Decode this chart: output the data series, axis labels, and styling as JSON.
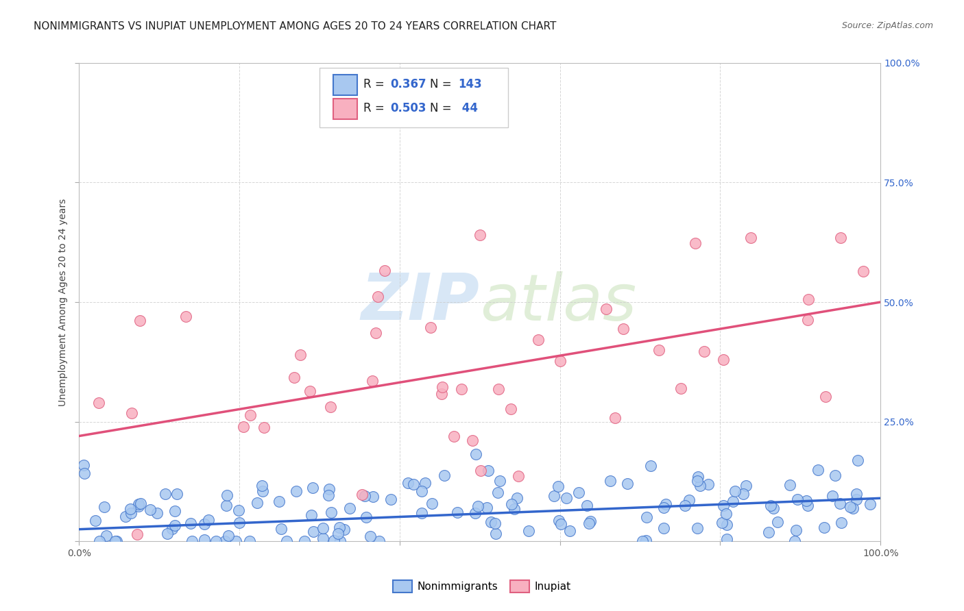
{
  "title": "NONIMMIGRANTS VS INUPIAT UNEMPLOYMENT AMONG AGES 20 TO 24 YEARS CORRELATION CHART",
  "source": "Source: ZipAtlas.com",
  "ylabel": "Unemployment Among Ages 20 to 24 years",
  "xlim": [
    0,
    1
  ],
  "ylim": [
    0,
    1
  ],
  "xtick_positions": [
    0.0,
    0.2,
    0.4,
    0.6,
    0.8,
    1.0
  ],
  "xtick_labels": [
    "0.0%",
    "",
    "",
    "",
    "",
    "100.0%"
  ],
  "ytick_positions_right": [
    0.25,
    0.5,
    0.75,
    1.0
  ],
  "ytick_labels_right": [
    "25.0%",
    "50.0%",
    "75.0%",
    "100.0%"
  ],
  "series1_color": "#a8c8f0",
  "series1_edge_color": "#4477cc",
  "series1_line_color": "#3366cc",
  "series2_color": "#f8b0c0",
  "series2_edge_color": "#e06080",
  "series2_line_color": "#e0507a",
  "series1_r": 0.367,
  "series1_n": 143,
  "series2_r": 0.503,
  "series2_n": 44,
  "series1_slope": 0.065,
  "series1_intercept": 0.025,
  "series2_slope": 0.28,
  "series2_intercept": 0.22,
  "series1_seed": 42,
  "series2_seed": 7,
  "bg_color": "#ffffff",
  "grid_color": "#cccccc",
  "title_color": "#222222",
  "label_color": "#444444",
  "tick_color": "#555555",
  "right_tick_color": "#3366cc",
  "watermark_color1": "#b8d4f0",
  "watermark_color2": "#c8e0b8",
  "title_fontsize": 11,
  "axis_label_fontsize": 10,
  "tick_fontsize": 10,
  "legend_fontsize": 12,
  "legend_r_color": "#222222",
  "legend_n_color": "#3366cc",
  "bottom_legend_label1": "Nonimmigrants",
  "bottom_legend_label2": "Inupiat"
}
